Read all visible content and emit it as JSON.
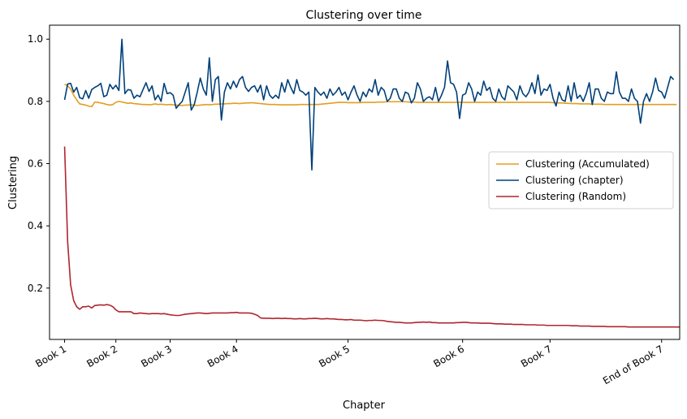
{
  "chart_data": {
    "type": "line",
    "title": "Clustering over time",
    "xlabel": "Chapter",
    "ylabel": "Clustering",
    "xlim": [
      -5,
      204
    ],
    "ylim": [
      0.035,
      1.045
    ],
    "grid": false,
    "legend_position": "center-right",
    "x_ticks": [
      {
        "x": 0,
        "label": "Book 1"
      },
      {
        "x": 17,
        "label": "Book 2"
      },
      {
        "x": 35,
        "label": "Book 3"
      },
      {
        "x": 57,
        "label": "Book 4"
      },
      {
        "x": 94,
        "label": "Book 5"
      },
      {
        "x": 132,
        "label": "Book 6"
      },
      {
        "x": 161,
        "label": "Book 7"
      },
      {
        "x": 198,
        "label": "End of Book 7"
      }
    ],
    "y_ticks": [
      0.2,
      0.4,
      0.6,
      0.8,
      1.0
    ],
    "y_tick_labels": [
      "0.2",
      "0.4",
      "0.6",
      "0.8",
      "1.0"
    ],
    "series": [
      {
        "name": "Clustering (Accumulated)",
        "color": "#e39e21",
        "values": [
          0.855,
          0.85,
          0.84,
          0.82,
          0.805,
          0.792,
          0.79,
          0.788,
          0.785,
          0.783,
          0.798,
          0.797,
          0.795,
          0.793,
          0.79,
          0.788,
          0.79,
          0.797,
          0.8,
          0.798,
          0.796,
          0.794,
          0.795,
          0.793,
          0.792,
          0.791,
          0.79,
          0.79,
          0.789,
          0.79,
          0.792,
          0.79,
          0.791,
          0.79,
          0.789,
          0.79,
          0.789,
          0.788,
          0.787,
          0.787,
          0.788,
          0.788,
          0.789,
          0.788,
          0.787,
          0.788,
          0.789,
          0.79,
          0.789,
          0.79,
          0.791,
          0.791,
          0.792,
          0.792,
          0.793,
          0.793,
          0.794,
          0.794,
          0.793,
          0.794,
          0.795,
          0.795,
          0.796,
          0.795,
          0.794,
          0.793,
          0.792,
          0.791,
          0.79,
          0.79,
          0.79,
          0.789,
          0.789,
          0.789,
          0.789,
          0.789,
          0.789,
          0.789,
          0.79,
          0.79,
          0.79,
          0.79,
          0.79,
          0.79,
          0.79,
          0.791,
          0.792,
          0.793,
          0.794,
          0.795,
          0.796,
          0.797,
          0.797,
          0.797,
          0.796,
          0.796,
          0.796,
          0.796,
          0.796,
          0.797,
          0.797,
          0.797,
          0.797,
          0.797,
          0.798,
          0.798,
          0.798,
          0.799,
          0.799,
          0.799,
          0.799,
          0.799,
          0.799,
          0.799,
          0.798,
          0.798,
          0.798,
          0.797,
          0.797,
          0.797,
          0.797,
          0.797,
          0.797,
          0.797,
          0.797,
          0.797,
          0.797,
          0.797,
          0.797,
          0.797,
          0.797,
          0.797,
          0.797,
          0.797,
          0.797,
          0.797,
          0.797,
          0.797,
          0.797,
          0.797,
          0.797,
          0.797,
          0.797,
          0.797,
          0.797,
          0.797,
          0.797,
          0.797,
          0.797,
          0.797,
          0.797,
          0.797,
          0.797,
          0.797,
          0.797,
          0.797,
          0.797,
          0.797,
          0.797,
          0.797,
          0.797,
          0.797,
          0.796,
          0.796,
          0.795,
          0.795,
          0.794,
          0.794,
          0.793,
          0.793,
          0.793,
          0.792,
          0.792,
          0.792,
          0.792,
          0.791,
          0.791,
          0.791,
          0.791,
          0.79,
          0.79,
          0.79,
          0.79,
          0.79,
          0.79,
          0.79,
          0.79,
          0.79,
          0.79,
          0.79,
          0.79,
          0.79,
          0.79,
          0.79,
          0.79,
          0.79,
          0.79,
          0.79,
          0.79,
          0.79,
          0.79,
          0.79,
          0.79,
          0.79
        ]
      },
      {
        "name": "Clustering (chapter)",
        "color": "#00407a",
        "values": [
          0.805,
          0.856,
          0.858,
          0.83,
          0.845,
          0.812,
          0.808,
          0.835,
          0.81,
          0.838,
          0.845,
          0.85,
          0.858,
          0.815,
          0.82,
          0.855,
          0.84,
          0.852,
          0.835,
          1.0,
          0.825,
          0.838,
          0.836,
          0.81,
          0.82,
          0.815,
          0.838,
          0.86,
          0.832,
          0.85,
          0.805,
          0.82,
          0.8,
          0.858,
          0.825,
          0.828,
          0.82,
          0.778,
          0.79,
          0.8,
          0.83,
          0.86,
          0.772,
          0.79,
          0.83,
          0.875,
          0.84,
          0.82,
          0.94,
          0.8,
          0.87,
          0.88,
          0.74,
          0.83,
          0.86,
          0.84,
          0.865,
          0.845,
          0.87,
          0.88,
          0.845,
          0.832,
          0.845,
          0.85,
          0.83,
          0.852,
          0.805,
          0.85,
          0.82,
          0.81,
          0.82,
          0.81,
          0.86,
          0.83,
          0.87,
          0.845,
          0.825,
          0.87,
          0.835,
          0.83,
          0.82,
          0.83,
          0.58,
          0.845,
          0.83,
          0.82,
          0.83,
          0.81,
          0.84,
          0.82,
          0.83,
          0.845,
          0.82,
          0.83,
          0.805,
          0.83,
          0.85,
          0.82,
          0.8,
          0.83,
          0.815,
          0.84,
          0.83,
          0.87,
          0.82,
          0.845,
          0.835,
          0.8,
          0.81,
          0.84,
          0.84,
          0.81,
          0.8,
          0.83,
          0.825,
          0.795,
          0.81,
          0.86,
          0.84,
          0.8,
          0.81,
          0.815,
          0.805,
          0.845,
          0.8,
          0.82,
          0.845,
          0.93,
          0.86,
          0.855,
          0.83,
          0.745,
          0.82,
          0.825,
          0.86,
          0.84,
          0.8,
          0.83,
          0.82,
          0.865,
          0.835,
          0.845,
          0.81,
          0.8,
          0.84,
          0.815,
          0.805,
          0.85,
          0.84,
          0.83,
          0.805,
          0.85,
          0.825,
          0.815,
          0.83,
          0.86,
          0.825,
          0.885,
          0.82,
          0.84,
          0.835,
          0.855,
          0.81,
          0.785,
          0.83,
          0.805,
          0.8,
          0.85,
          0.8,
          0.86,
          0.81,
          0.82,
          0.8,
          0.825,
          0.86,
          0.79,
          0.84,
          0.84,
          0.81,
          0.8,
          0.83,
          0.825,
          0.825,
          0.895,
          0.83,
          0.81,
          0.81,
          0.8,
          0.84,
          0.81,
          0.8,
          0.73,
          0.8,
          0.825,
          0.8,
          0.83,
          0.875,
          0.835,
          0.83,
          0.81,
          0.845,
          0.88,
          0.87
        ]
      },
      {
        "name": "Clustering (Random)",
        "color": "#b02530",
        "values": [
          0.655,
          0.35,
          0.21,
          0.16,
          0.14,
          0.132,
          0.14,
          0.14,
          0.142,
          0.136,
          0.144,
          0.145,
          0.146,
          0.145,
          0.147,
          0.145,
          0.14,
          0.13,
          0.124,
          0.124,
          0.124,
          0.124,
          0.124,
          0.118,
          0.118,
          0.12,
          0.119,
          0.118,
          0.117,
          0.118,
          0.118,
          0.118,
          0.117,
          0.118,
          0.116,
          0.114,
          0.113,
          0.112,
          0.112,
          0.114,
          0.116,
          0.117,
          0.118,
          0.119,
          0.12,
          0.12,
          0.119,
          0.118,
          0.119,
          0.12,
          0.12,
          0.12,
          0.12,
          0.12,
          0.12,
          0.121,
          0.121,
          0.122,
          0.12,
          0.12,
          0.12,
          0.12,
          0.119,
          0.116,
          0.112,
          0.104,
          0.103,
          0.103,
          0.103,
          0.102,
          0.103,
          0.103,
          0.102,
          0.103,
          0.102,
          0.102,
          0.101,
          0.101,
          0.102,
          0.101,
          0.101,
          0.102,
          0.102,
          0.103,
          0.102,
          0.101,
          0.101,
          0.102,
          0.101,
          0.101,
          0.1,
          0.099,
          0.099,
          0.098,
          0.098,
          0.099,
          0.097,
          0.097,
          0.097,
          0.096,
          0.095,
          0.096,
          0.096,
          0.097,
          0.096,
          0.096,
          0.095,
          0.093,
          0.092,
          0.091,
          0.09,
          0.09,
          0.089,
          0.088,
          0.088,
          0.088,
          0.089,
          0.09,
          0.09,
          0.091,
          0.09,
          0.091,
          0.089,
          0.089,
          0.088,
          0.088,
          0.088,
          0.088,
          0.088,
          0.088,
          0.089,
          0.089,
          0.09,
          0.09,
          0.089,
          0.088,
          0.088,
          0.088,
          0.087,
          0.087,
          0.087,
          0.087,
          0.086,
          0.085,
          0.085,
          0.085,
          0.084,
          0.084,
          0.084,
          0.083,
          0.083,
          0.083,
          0.083,
          0.082,
          0.082,
          0.082,
          0.082,
          0.081,
          0.081,
          0.081,
          0.08,
          0.08,
          0.08,
          0.08,
          0.08,
          0.08,
          0.08,
          0.08,
          0.079,
          0.079,
          0.079,
          0.078,
          0.078,
          0.078,
          0.078,
          0.077,
          0.077,
          0.077,
          0.077,
          0.077,
          0.076,
          0.076,
          0.076,
          0.076,
          0.076,
          0.076,
          0.076,
          0.075,
          0.075,
          0.075,
          0.075,
          0.075,
          0.075,
          0.075,
          0.075,
          0.075,
          0.075,
          0.075,
          0.075,
          0.075,
          0.075,
          0.075,
          0.075,
          0.075,
          0.075,
          0.075,
          0.075,
          0.075
        ]
      }
    ]
  }
}
